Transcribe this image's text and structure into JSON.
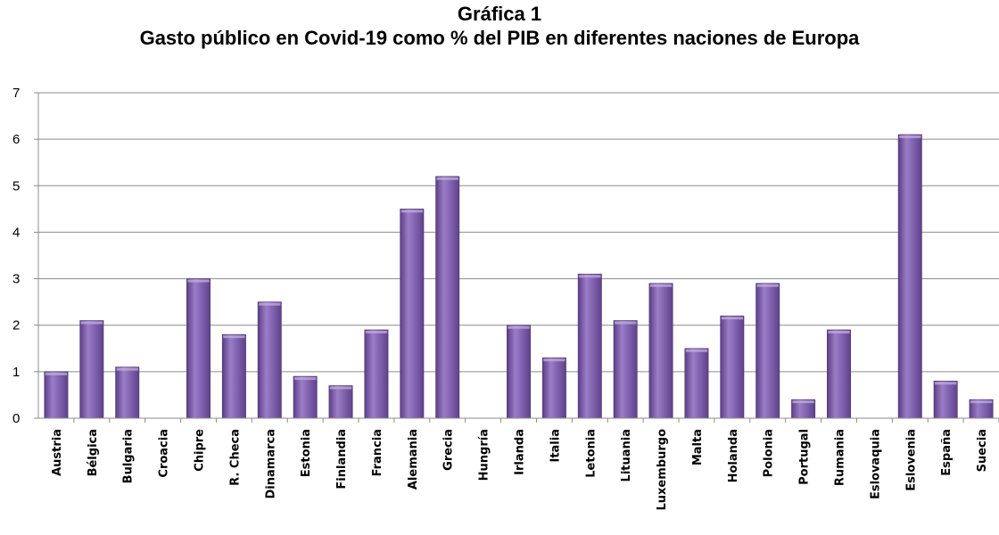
{
  "chart_data": {
    "type": "bar",
    "title_line1": "Gráfica 1",
    "title_line2": "Gasto público en Covid-19 como % del PIB en diferentes naciones de Europa",
    "xlabel": "",
    "ylabel": "",
    "ylim": [
      0,
      7
    ],
    "yticks": [
      "0",
      "1",
      "2",
      "3",
      "4",
      "5",
      "6",
      "7"
    ],
    "grid": true,
    "legend": "none",
    "bar_color": "#7b5aa6",
    "categories": [
      "Austria",
      "Bélgica",
      "Bulgaria",
      "Croacia",
      "Chipre",
      "R. Checa",
      "Dinamarca",
      "Estonia",
      "Finlandia",
      "Francia",
      "Alemania",
      "Grecia",
      "Hungría",
      "Irlanda",
      "Italia",
      "Letonia",
      "Lituania",
      "Luxemburgo",
      "Malta",
      "Holanda",
      "Polonia",
      "Portugal",
      "Rumania",
      "Eslovaquia",
      "Eslovenia",
      "España",
      "Suecia"
    ],
    "values": [
      1.0,
      2.1,
      1.1,
      0,
      3.0,
      1.8,
      2.5,
      0.9,
      0.7,
      1.9,
      4.5,
      5.2,
      0,
      2.0,
      1.3,
      3.1,
      2.1,
      2.9,
      1.5,
      2.2,
      2.9,
      0.4,
      1.9,
      0,
      6.1,
      0.8,
      0.4
    ]
  }
}
